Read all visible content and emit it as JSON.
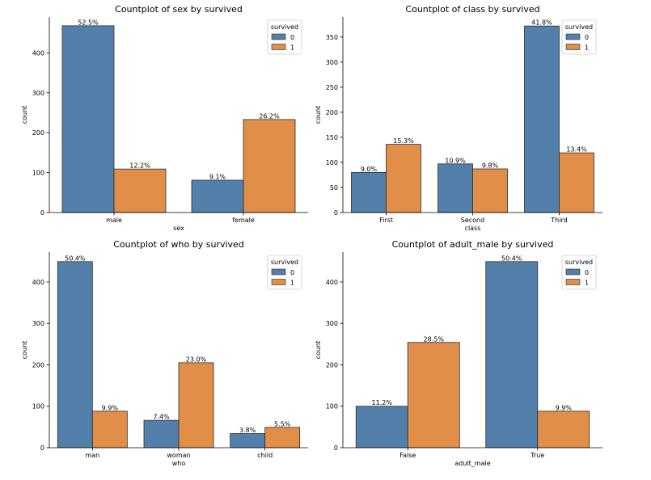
{
  "chart_data": [
    {
      "type": "bar",
      "title": "Countplot of sex  by survived",
      "xlabel": "sex",
      "ylabel": "count",
      "categories": [
        "male",
        "female"
      ],
      "ylim": [
        0,
        490
      ],
      "yticks": [
        0,
        100,
        200,
        300,
        400
      ],
      "legend": {
        "title": "survived",
        "placement": "top-right"
      },
      "series": [
        {
          "name": "0",
          "values": [
            468,
            81
          ],
          "labels": [
            "52.5%",
            "9.1%"
          ]
        },
        {
          "name": "1",
          "values": [
            109,
            233
          ],
          "labels": [
            "12.2%",
            "26.2%"
          ]
        }
      ]
    },
    {
      "type": "bar",
      "title": "Countplot of class  by survived",
      "xlabel": "class",
      "ylabel": "count",
      "categories": [
        "First",
        "Second",
        "Third"
      ],
      "ylim": [
        0,
        390
      ],
      "yticks": [
        0,
        50,
        100,
        150,
        200,
        250,
        300,
        350
      ],
      "legend": {
        "title": "survived",
        "placement": "top-right"
      },
      "series": [
        {
          "name": "0",
          "values": [
            80,
            97,
            372
          ],
          "labels": [
            "9.0%",
            "10.9%",
            "41.8%"
          ]
        },
        {
          "name": "1",
          "values": [
            136,
            87,
            119
          ],
          "labels": [
            "15.3%",
            "9.8%",
            "13.4%"
          ]
        }
      ]
    },
    {
      "type": "bar",
      "title": "Countplot of who  by survived",
      "xlabel": "who",
      "ylabel": "count",
      "categories": [
        "man",
        "woman",
        "child"
      ],
      "ylim": [
        0,
        472
      ],
      "yticks": [
        0,
        100,
        200,
        300,
        400
      ],
      "legend": {
        "title": "survived",
        "placement": "top-right"
      },
      "series": [
        {
          "name": "0",
          "values": [
            449,
            66,
            34
          ],
          "labels": [
            "50.4%",
            "7.4%",
            "3.8%"
          ]
        },
        {
          "name": "1",
          "values": [
            88,
            205,
            49
          ],
          "labels": [
            "9.9%",
            "23.0%",
            "5.5%"
          ]
        }
      ]
    },
    {
      "type": "bar",
      "title": "Countplot of adult_male  by survived",
      "xlabel": "adult_male",
      "ylabel": "count",
      "categories": [
        "False",
        "True"
      ],
      "ylim": [
        0,
        472
      ],
      "yticks": [
        0,
        100,
        200,
        300,
        400
      ],
      "legend": {
        "title": "survived",
        "placement": "top-right"
      },
      "series": [
        {
          "name": "0",
          "values": [
            100,
            449
          ],
          "labels": [
            "11.2%",
            "50.4%"
          ]
        },
        {
          "name": "1",
          "values": [
            254,
            88
          ],
          "labels": [
            "28.5%",
            "9.9%"
          ]
        }
      ]
    }
  ],
  "colors": {
    "series_0": "#5280aa",
    "series_1": "#e18e48",
    "edge": "#2b2b2b"
  }
}
